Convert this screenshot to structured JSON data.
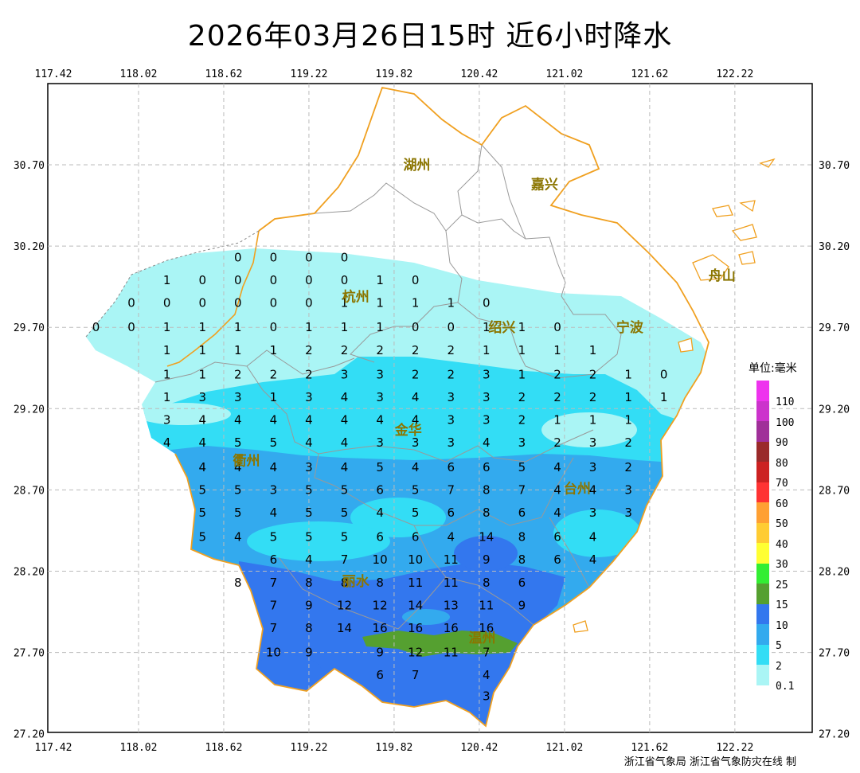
{
  "title": "2026年03月26日15时  近6小时降水",
  "credit": "浙江省气象局 浙江省气象防灾在线 制",
  "axes": {
    "x_ticks": [
      "117.42",
      "118.02",
      "118.62",
      "119.22",
      "119.82",
      "120.42",
      "121.02",
      "121.62",
      "122.22"
    ],
    "y_ticks": [
      "30.70",
      "30.20",
      "29.70",
      "29.20",
      "28.70",
      "28.20",
      "27.70",
      "27.20"
    ]
  },
  "legend": {
    "title": "单位:毫米",
    "items": [
      {
        "label": "110",
        "color": "#ee33ee"
      },
      {
        "label": "100",
        "color": "#cc33cc"
      },
      {
        "label": "90",
        "color": "#a03099"
      },
      {
        "label": "80",
        "color": "#9a2a2a"
      },
      {
        "label": "70",
        "color": "#cc2222"
      },
      {
        "label": "60",
        "color": "#ff3333"
      },
      {
        "label": "50",
        "color": "#ffa033"
      },
      {
        "label": "40",
        "color": "#ffcc33"
      },
      {
        "label": "30",
        "color": "#ffff33"
      },
      {
        "label": "25",
        "color": "#33ee33"
      },
      {
        "label": "15",
        "color": "#55a030"
      },
      {
        "label": "10",
        "color": "#3377ee"
      },
      {
        "label": "5",
        "color": "#33aaee"
      },
      {
        "label": "2",
        "color": "#33ddf5"
      },
      {
        "label": "0.1",
        "color": "#aaf5f5"
      }
    ]
  },
  "cities": [
    {
      "name": "湖州",
      "lon": 119.98,
      "lat": 30.7
    },
    {
      "name": "嘉兴",
      "lon": 120.88,
      "lat": 30.58
    },
    {
      "name": "杭州",
      "lon": 119.55,
      "lat": 29.89
    },
    {
      "name": "绍兴",
      "lon": 120.58,
      "lat": 29.7
    },
    {
      "name": "宁波",
      "lon": 121.48,
      "lat": 29.7
    },
    {
      "name": "衢州",
      "lon": 118.78,
      "lat": 28.88
    },
    {
      "name": "金华",
      "lon": 119.92,
      "lat": 29.07
    },
    {
      "name": "台州",
      "lon": 121.11,
      "lat": 28.71
    },
    {
      "name": "丽水",
      "lon": 119.55,
      "lat": 28.14
    },
    {
      "name": "温州",
      "lon": 120.44,
      "lat": 27.79
    },
    {
      "name": "舟山",
      "lon": 122.13,
      "lat": 30.02
    }
  ],
  "precip_rows": [
    {
      "lat": 30.13,
      "cells": [
        [
          118.72,
          "0"
        ],
        [
          118.97,
          "0"
        ],
        [
          119.22,
          "0"
        ],
        [
          119.47,
          "0"
        ]
      ]
    },
    {
      "lat": 29.99,
      "cells": [
        [
          118.22,
          "1"
        ],
        [
          118.47,
          "0"
        ],
        [
          118.72,
          "0"
        ],
        [
          118.97,
          "0"
        ],
        [
          119.22,
          "0"
        ],
        [
          119.47,
          "0"
        ],
        [
          119.72,
          "1"
        ],
        [
          119.97,
          "0"
        ]
      ]
    },
    {
      "lat": 29.85,
      "cells": [
        [
          117.97,
          "0"
        ],
        [
          118.22,
          "0"
        ],
        [
          118.47,
          "0"
        ],
        [
          118.72,
          "0"
        ],
        [
          118.97,
          "0"
        ],
        [
          119.22,
          "0"
        ],
        [
          119.47,
          "1"
        ],
        [
          119.72,
          "1"
        ],
        [
          119.97,
          "1"
        ],
        [
          120.22,
          "1"
        ],
        [
          120.47,
          "0"
        ]
      ]
    },
    {
      "lat": 29.7,
      "cells": [
        [
          117.72,
          "0"
        ],
        [
          117.97,
          "0"
        ],
        [
          118.22,
          "1"
        ],
        [
          118.47,
          "1"
        ],
        [
          118.72,
          "1"
        ],
        [
          118.97,
          "0"
        ],
        [
          119.22,
          "1"
        ],
        [
          119.47,
          "1"
        ],
        [
          119.72,
          "1"
        ],
        [
          119.97,
          "0"
        ],
        [
          120.22,
          "0"
        ],
        [
          120.47,
          "1"
        ],
        [
          120.72,
          "1"
        ],
        [
          120.97,
          "0"
        ]
      ]
    },
    {
      "lat": 29.56,
      "cells": [
        [
          118.22,
          "1"
        ],
        [
          118.47,
          "1"
        ],
        [
          118.72,
          "1"
        ],
        [
          118.97,
          "1"
        ],
        [
          119.22,
          "2"
        ],
        [
          119.47,
          "2"
        ],
        [
          119.72,
          "2"
        ],
        [
          119.97,
          "2"
        ],
        [
          120.22,
          "2"
        ],
        [
          120.47,
          "1"
        ],
        [
          120.72,
          "1"
        ],
        [
          120.97,
          "1"
        ],
        [
          121.22,
          "1"
        ]
      ]
    },
    {
      "lat": 29.41,
      "cells": [
        [
          118.22,
          "1"
        ],
        [
          118.47,
          "1"
        ],
        [
          118.72,
          "2"
        ],
        [
          118.97,
          "2"
        ],
        [
          119.22,
          "2"
        ],
        [
          119.47,
          "3"
        ],
        [
          119.72,
          "3"
        ],
        [
          119.97,
          "2"
        ],
        [
          120.22,
          "2"
        ],
        [
          120.47,
          "3"
        ],
        [
          120.72,
          "1"
        ],
        [
          120.97,
          "2"
        ],
        [
          121.22,
          "2"
        ],
        [
          121.47,
          "1"
        ],
        [
          121.72,
          "0"
        ]
      ]
    },
    {
      "lat": 29.27,
      "cells": [
        [
          118.22,
          "1"
        ],
        [
          118.47,
          "3"
        ],
        [
          118.72,
          "3"
        ],
        [
          118.97,
          "1"
        ],
        [
          119.22,
          "3"
        ],
        [
          119.47,
          "4"
        ],
        [
          119.72,
          "3"
        ],
        [
          119.97,
          "4"
        ],
        [
          120.22,
          "3"
        ],
        [
          120.47,
          "3"
        ],
        [
          120.72,
          "2"
        ],
        [
          120.97,
          "2"
        ],
        [
          121.22,
          "2"
        ],
        [
          121.47,
          "1"
        ],
        [
          121.72,
          "1"
        ]
      ]
    },
    {
      "lat": 29.13,
      "cells": [
        [
          118.22,
          "3"
        ],
        [
          118.47,
          "4"
        ],
        [
          118.72,
          "4"
        ],
        [
          118.97,
          "4"
        ],
        [
          119.22,
          "4"
        ],
        [
          119.47,
          "4"
        ],
        [
          119.72,
          "4"
        ],
        [
          119.97,
          "4"
        ],
        [
          120.22,
          "3"
        ],
        [
          120.47,
          "3"
        ],
        [
          120.72,
          "2"
        ],
        [
          120.97,
          "1"
        ],
        [
          121.22,
          "1"
        ],
        [
          121.47,
          "1"
        ]
      ]
    },
    {
      "lat": 28.99,
      "cells": [
        [
          118.22,
          "4"
        ],
        [
          118.47,
          "4"
        ],
        [
          118.72,
          "5"
        ],
        [
          118.97,
          "5"
        ],
        [
          119.22,
          "4"
        ],
        [
          119.47,
          "4"
        ],
        [
          119.72,
          "3"
        ],
        [
          119.97,
          "3"
        ],
        [
          120.22,
          "3"
        ],
        [
          120.47,
          "4"
        ],
        [
          120.72,
          "3"
        ],
        [
          120.97,
          "2"
        ],
        [
          121.22,
          "3"
        ],
        [
          121.47,
          "2"
        ]
      ]
    },
    {
      "lat": 28.84,
      "cells": [
        [
          118.47,
          "4"
        ],
        [
          118.72,
          "4"
        ],
        [
          118.97,
          "4"
        ],
        [
          119.22,
          "3"
        ],
        [
          119.47,
          "4"
        ],
        [
          119.72,
          "5"
        ],
        [
          119.97,
          "4"
        ],
        [
          120.22,
          "6"
        ],
        [
          120.47,
          "6"
        ],
        [
          120.72,
          "5"
        ],
        [
          120.97,
          "4"
        ],
        [
          121.22,
          "3"
        ],
        [
          121.47,
          "2"
        ]
      ]
    },
    {
      "lat": 28.7,
      "cells": [
        [
          118.47,
          "5"
        ],
        [
          118.72,
          "5"
        ],
        [
          118.97,
          "3"
        ],
        [
          119.22,
          "5"
        ],
        [
          119.47,
          "5"
        ],
        [
          119.72,
          "6"
        ],
        [
          119.97,
          "5"
        ],
        [
          120.22,
          "7"
        ],
        [
          120.47,
          "8"
        ],
        [
          120.72,
          "7"
        ],
        [
          120.97,
          "4"
        ],
        [
          121.22,
          "4"
        ],
        [
          121.47,
          "3"
        ]
      ]
    },
    {
      "lat": 28.56,
      "cells": [
        [
          118.47,
          "5"
        ],
        [
          118.72,
          "5"
        ],
        [
          118.97,
          "4"
        ],
        [
          119.22,
          "5"
        ],
        [
          119.47,
          "5"
        ],
        [
          119.72,
          "4"
        ],
        [
          119.97,
          "5"
        ],
        [
          120.22,
          "6"
        ],
        [
          120.47,
          "8"
        ],
        [
          120.72,
          "6"
        ],
        [
          120.97,
          "4"
        ],
        [
          121.22,
          "3"
        ],
        [
          121.47,
          "3"
        ]
      ]
    },
    {
      "lat": 28.41,
      "cells": [
        [
          118.47,
          "5"
        ],
        [
          118.72,
          "4"
        ],
        [
          118.97,
          "5"
        ],
        [
          119.22,
          "5"
        ],
        [
          119.47,
          "5"
        ],
        [
          119.72,
          "6"
        ],
        [
          119.97,
          "6"
        ],
        [
          120.22,
          "4"
        ],
        [
          120.47,
          "14"
        ],
        [
          120.72,
          "8"
        ],
        [
          120.97,
          "6"
        ],
        [
          121.22,
          "4"
        ]
      ]
    },
    {
      "lat": 28.27,
      "cells": [
        [
          118.97,
          "6"
        ],
        [
          119.22,
          "4"
        ],
        [
          119.47,
          "7"
        ],
        [
          119.72,
          "10"
        ],
        [
          119.97,
          "10"
        ],
        [
          120.22,
          "11"
        ],
        [
          120.47,
          "9"
        ],
        [
          120.72,
          "8"
        ],
        [
          120.97,
          "6"
        ],
        [
          121.22,
          "4"
        ]
      ]
    },
    {
      "lat": 28.13,
      "cells": [
        [
          118.72,
          "8"
        ],
        [
          118.97,
          "7"
        ],
        [
          119.22,
          "8"
        ],
        [
          119.47,
          "8"
        ],
        [
          119.72,
          "8"
        ],
        [
          119.97,
          "11"
        ],
        [
          120.22,
          "11"
        ],
        [
          120.47,
          "8"
        ],
        [
          120.72,
          "6"
        ]
      ]
    },
    {
      "lat": 27.99,
      "cells": [
        [
          118.97,
          "7"
        ],
        [
          119.22,
          "9"
        ],
        [
          119.47,
          "12"
        ],
        [
          119.72,
          "12"
        ],
        [
          119.97,
          "14"
        ],
        [
          120.22,
          "13"
        ],
        [
          120.47,
          "11"
        ],
        [
          120.72,
          "9"
        ]
      ]
    },
    {
      "lat": 27.85,
      "cells": [
        [
          118.97,
          "7"
        ],
        [
          119.22,
          "8"
        ],
        [
          119.47,
          "14"
        ],
        [
          119.72,
          "16"
        ],
        [
          119.97,
          "16"
        ],
        [
          120.22,
          "16"
        ],
        [
          120.47,
          "16"
        ]
      ]
    },
    {
      "lat": 27.7,
      "cells": [
        [
          118.97,
          "10"
        ],
        [
          119.22,
          "9"
        ],
        [
          119.72,
          "9"
        ],
        [
          119.97,
          "12"
        ],
        [
          120.22,
          "11"
        ],
        [
          120.47,
          "7"
        ]
      ]
    },
    {
      "lat": 27.56,
      "cells": [
        [
          119.72,
          "6"
        ],
        [
          119.97,
          "7"
        ],
        [
          120.47,
          "4"
        ]
      ]
    },
    {
      "lat": 27.43,
      "cells": [
        [
          120.47,
          "3"
        ]
      ]
    }
  ]
}
